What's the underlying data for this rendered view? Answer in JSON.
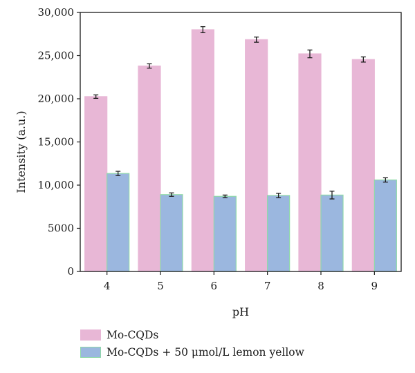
{
  "chart_data": {
    "type": "bar",
    "categories": [
      "4",
      "5",
      "6",
      "7",
      "8",
      "9"
    ],
    "series": [
      {
        "name": "Mo-CQDs",
        "values": [
          20250,
          23800,
          28000,
          26850,
          25200,
          24550
        ],
        "errors": [
          200,
          250,
          350,
          300,
          450,
          300
        ],
        "color": "#e8b7d6",
        "edge": "#e8b7d6"
      },
      {
        "name": "Mo-CQDs + 50 μmol/L lemon yellow",
        "values": [
          11350,
          8900,
          8700,
          8800,
          8850,
          10600
        ],
        "errors": [
          250,
          200,
          150,
          250,
          450,
          250
        ],
        "color": "#9bb7df",
        "edge": "#8fd9a8"
      }
    ],
    "xlabel": "pH",
    "ylabel": "Intensity (a.u.)",
    "ylim": [
      0,
      30000
    ],
    "yticks": [
      0,
      5000,
      10000,
      15000,
      20000,
      25000,
      30000
    ],
    "ytick_labels": [
      "0",
      "5000",
      "10,000",
      "15,000",
      "20,000",
      "25,000",
      "30,000"
    ],
    "grid": false,
    "legend_position": "bottom"
  }
}
